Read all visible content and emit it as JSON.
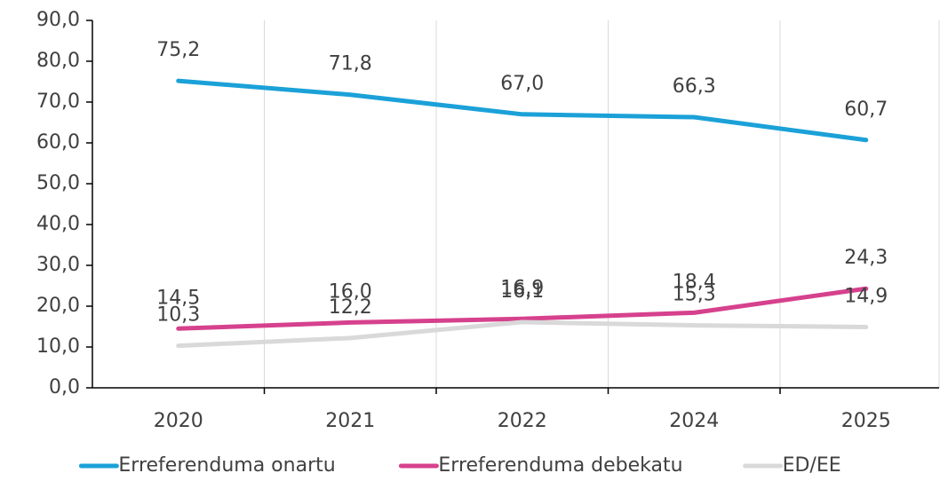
{
  "chart_data": {
    "type": "line",
    "categories": [
      "2020",
      "2021",
      "2022",
      "2024",
      "2025"
    ],
    "series": [
      {
        "name": "Erreferenduma onartu",
        "color": "#1ba1d8",
        "values": [
          75.2,
          71.8,
          67.0,
          66.3,
          60.7
        ],
        "value_labels": [
          "75,2",
          "71,8",
          "67,0",
          "66,3",
          "60,7"
        ]
      },
      {
        "name": "Erreferenduma debekatu",
        "color": "#d6418d",
        "values": [
          14.5,
          16.0,
          16.9,
          18.4,
          24.3
        ],
        "value_labels": [
          "14,5",
          "16,0",
          "16,9",
          "18,4",
          "24,3"
        ]
      },
      {
        "name": "ED/EE",
        "color": "#d9d9d9",
        "values": [
          10.3,
          12.2,
          16.1,
          15.3,
          14.9
        ],
        "value_labels": [
          "10,3",
          "12,2",
          "16,1",
          "15,3",
          "14,9"
        ]
      }
    ],
    "ylim": [
      0,
      90
    ],
    "yticks": [
      {
        "value": 0,
        "label": "0,0"
      },
      {
        "value": 10,
        "label": "10,0"
      },
      {
        "value": 20,
        "label": "20,0"
      },
      {
        "value": 30,
        "label": "30,0"
      },
      {
        "value": 40,
        "label": "40,0"
      },
      {
        "value": 50,
        "label": "50,0"
      },
      {
        "value": 60,
        "label": "60,0"
      },
      {
        "value": 70,
        "label": "70,0"
      },
      {
        "value": 80,
        "label": "80,0"
      },
      {
        "value": 90,
        "label": "90,0"
      }
    ],
    "grid": true,
    "legend": "bottom"
  }
}
